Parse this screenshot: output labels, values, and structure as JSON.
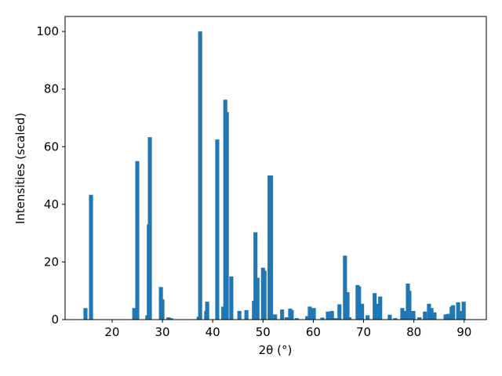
{
  "chart_data": {
    "type": "bar",
    "xlabel": "2θ (°)",
    "ylabel": "Intensities (scaled)",
    "color": "#1f77b4",
    "x": [
      14.7,
      15.8,
      24.4,
      25.0,
      27.0,
      27.3,
      27.5,
      29.7,
      30.0,
      31.2,
      31.7,
      37.2,
      37.5,
      38.7,
      38.9,
      40.9,
      42.1,
      42.5,
      42.8,
      43.7,
      45.3,
      46.7,
      48.2,
      48.5,
      48.9,
      50.0,
      50.3,
      51.3,
      51.6,
      52.4,
      53.8,
      54.7,
      55.4,
      55.7,
      56.7,
      58.8,
      59.3,
      60.1,
      61.8,
      62.9,
      63.7,
      64.4,
      65.2,
      66.3,
      66.8,
      67.2,
      68.8,
      69.1,
      69.7,
      70.8,
      72.2,
      72.7,
      73.3,
      75.2,
      76.3,
      77.7,
      78.2,
      78.8,
      79.1,
      79.9,
      81.1,
      82.2,
      83.0,
      83.5,
      84.1,
      86.3,
      86.9,
      87.5,
      87.8,
      88.8,
      89.1,
      89.9
    ],
    "values": [
      4,
      43.3,
      4,
      55,
      1.5,
      33,
      63.3,
      11.3,
      7,
      0.8,
      0.5,
      1,
      100,
      3,
      6.2,
      62.5,
      4.5,
      76.3,
      72,
      15,
      3,
      3.3,
      6.5,
      30.3,
      14.5,
      18,
      17,
      50,
      50,
      1.8,
      3.5,
      0.8,
      3.8,
      3.3,
      0.5,
      1.2,
      4.5,
      4,
      0.7,
      2.8,
      3,
      0.5,
      5.3,
      22.2,
      9.5,
      0.8,
      12,
      11.5,
      5.5,
      1.5,
      9.2,
      5.5,
      8,
      1.7,
      0.5,
      4,
      3,
      12.5,
      10,
      3,
      0.8,
      2.8,
      5.5,
      4,
      2.5,
      1.8,
      2,
      4.5,
      5,
      6,
      3,
      6.2
    ],
    "xlim": [
      10.65,
      94.4
    ],
    "ylim": [
      0,
      105.2
    ],
    "xticks": [
      20,
      30,
      40,
      50,
      60,
      70,
      80,
      90
    ],
    "yticks": [
      0,
      20,
      40,
      60,
      80,
      100
    ],
    "grid": false
  }
}
